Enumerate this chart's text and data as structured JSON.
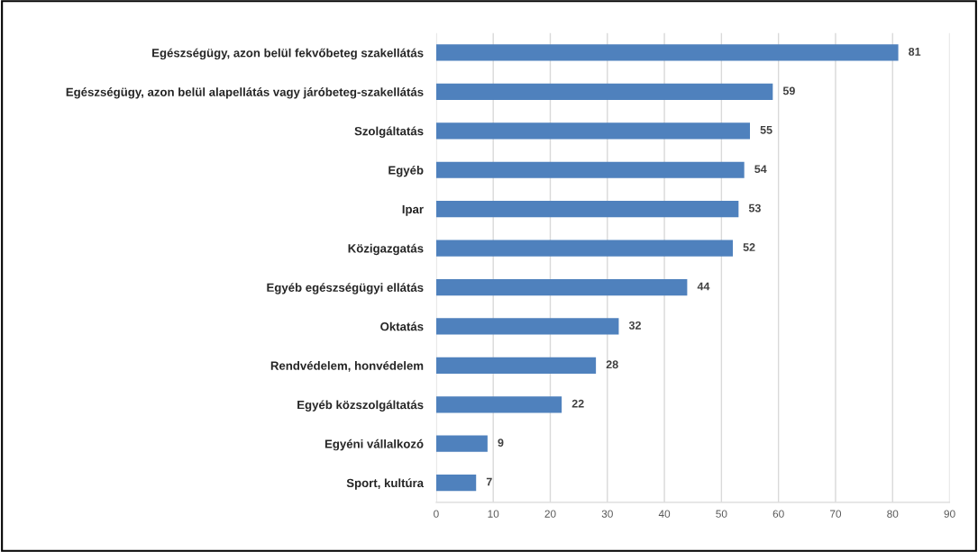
{
  "chart_data": {
    "type": "bar",
    "orientation": "horizontal",
    "categories": [
      "Egészségügy, azon belül fekvőbeteg szakellátás",
      "Egészségügy, azon belül alapellátás vagy járóbeteg-szakellátás",
      "Szolgáltatás",
      "Egyéb",
      "Ipar",
      "Közigazgatás",
      "Egyéb egészségügyi ellátás",
      "Oktatás",
      "Rendvédelem, honvédelem",
      "Egyéb közszolgáltatás",
      "Egyéni vállalkozó",
      "Sport, kultúra"
    ],
    "values": [
      81,
      59,
      55,
      54,
      53,
      52,
      44,
      32,
      28,
      22,
      9,
      7
    ],
    "color": "#4f81bd",
    "xlim": [
      0,
      90
    ],
    "xticks": [
      0,
      10,
      20,
      30,
      40,
      50,
      60,
      70,
      80,
      90
    ],
    "grid": "x",
    "data_labels": true
  }
}
